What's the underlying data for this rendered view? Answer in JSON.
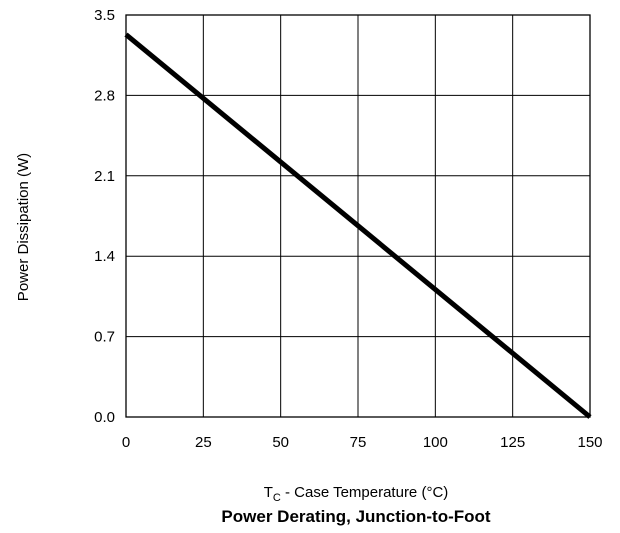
{
  "chart_data": {
    "type": "line",
    "title": "Power Derating, Junction-to-Foot",
    "xlabel": {
      "main": "T",
      "subscript": "C",
      "rest": " - Case Temperature (°C)"
    },
    "ylabel": "Power Dissipation (W)",
    "xlim": [
      0,
      150
    ],
    "ylim": [
      0,
      3.5
    ],
    "x_ticks": [
      "0",
      "25",
      "50",
      "75",
      "100",
      "125",
      "150"
    ],
    "y_ticks": [
      "0.0",
      "0.7",
      "1.4",
      "2.1",
      "2.8",
      "3.5"
    ],
    "grid": true,
    "series": [
      {
        "color": "#000000",
        "x": [
          0,
          150
        ],
        "y": [
          3.33,
          0.0
        ]
      }
    ]
  }
}
